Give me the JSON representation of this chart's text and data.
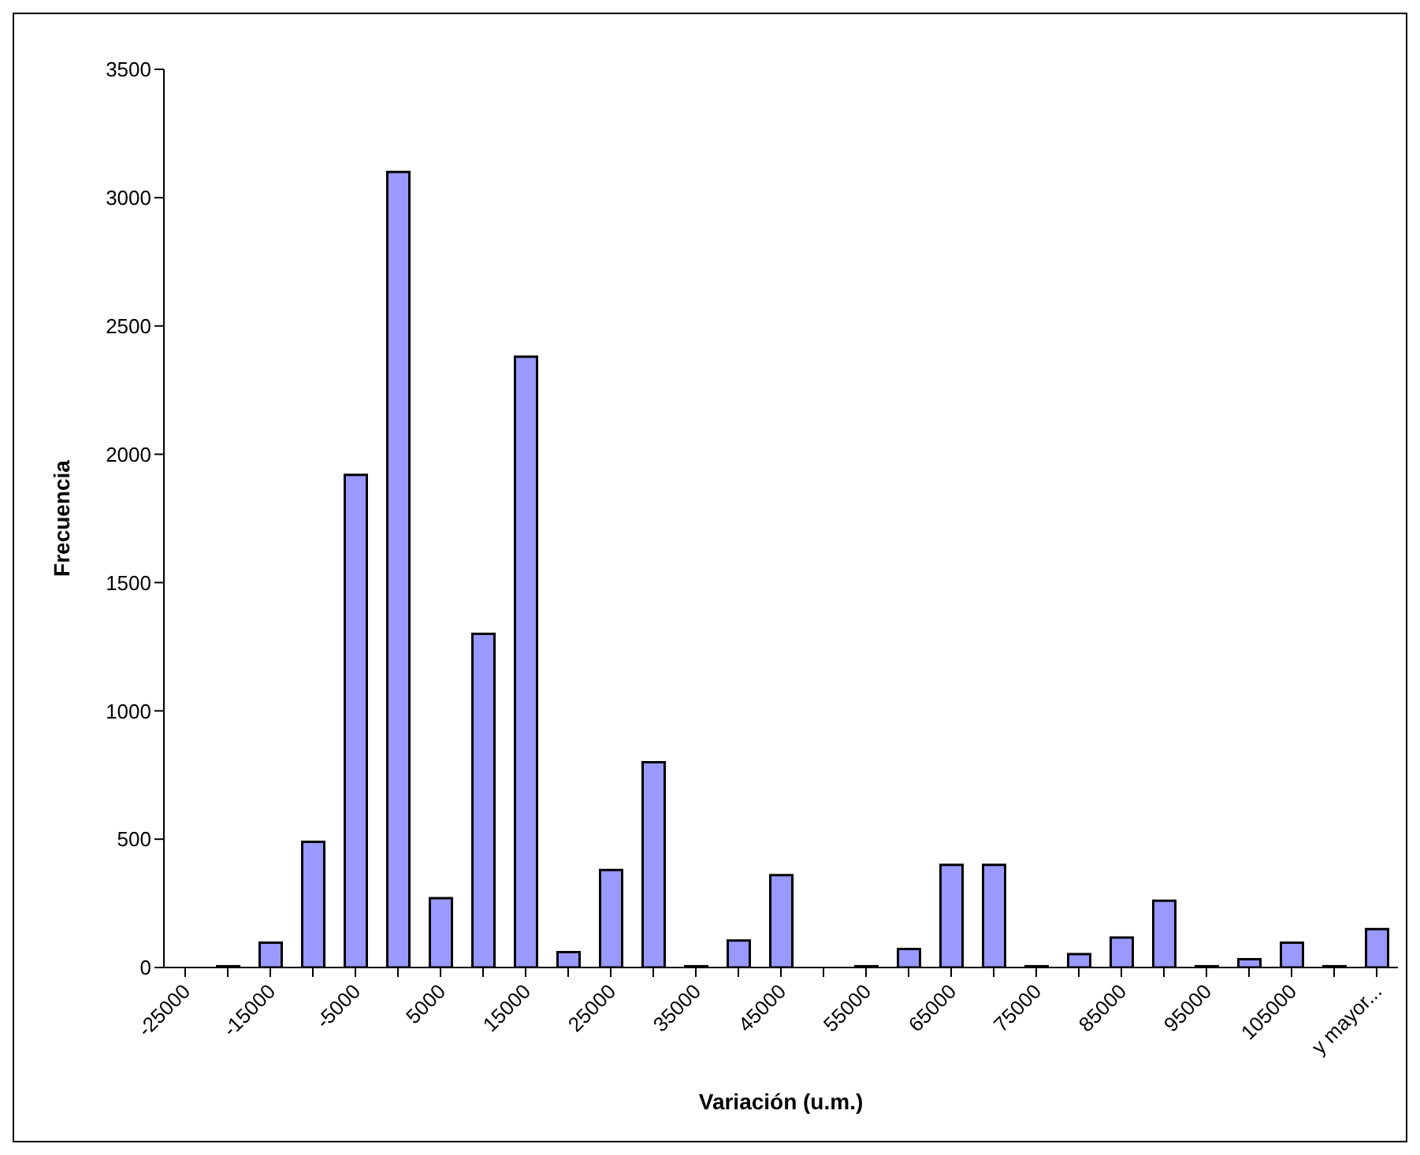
{
  "chart_data": {
    "type": "bar",
    "xlabel": "Variación (u.m.)",
    "ylabel": "Frecuencia",
    "categories": [
      "-25000",
      null,
      "-15000",
      null,
      "-5000",
      null,
      "5000",
      null,
      "15000",
      null,
      "25000",
      null,
      "35000",
      null,
      "45000",
      null,
      "55000",
      null,
      "65000",
      null,
      "75000",
      null,
      "85000",
      null,
      "95000",
      null,
      "105000",
      null,
      "y mayor..."
    ],
    "values": [
      0,
      5,
      97,
      490,
      1920,
      3100,
      270,
      1300,
      2380,
      60,
      380,
      800,
      5,
      105,
      360,
      0,
      5,
      72,
      400,
      400,
      5,
      52,
      117,
      260,
      5,
      32,
      97,
      5,
      150
    ],
    "color": "#9999ff",
    "ylim": [
      0,
      3500
    ],
    "yticks": [
      0,
      500,
      1000,
      1500,
      2000,
      2500,
      3000,
      3500
    ],
    "grid": false,
    "legend": false
  }
}
